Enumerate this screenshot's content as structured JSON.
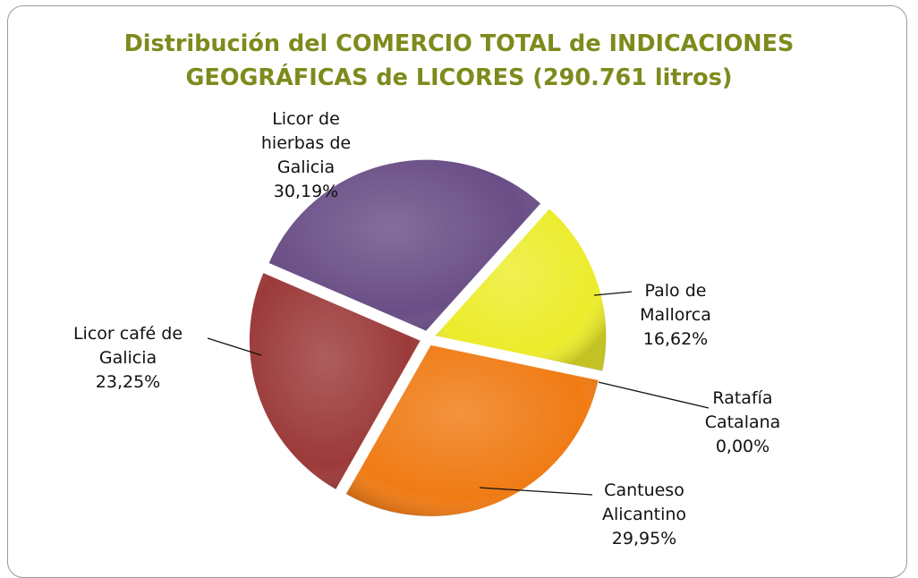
{
  "chart_data": {
    "type": "pie",
    "title": "Distribución del COMERCIO TOTAL de INDICACIONES GEOGRÁFICAS de LICORES (290.761 litros)",
    "categories": [
      "Palo de Mallorca",
      "Ratafía Catalana",
      "Cantueso Alicantino",
      "Licor café de Galicia",
      "Licor de hierbas de Galicia"
    ],
    "values": [
      16.62,
      0.0,
      29.95,
      23.25,
      30.19
    ],
    "value_labels": [
      "16,62%",
      "0,00%",
      "29,95%",
      "23,25%",
      "30,19%"
    ],
    "colors": [
      "#ecec2c",
      "#c0c0c0",
      "#f07b14",
      "#9c3a3a",
      "#6a4e86"
    ]
  }
}
